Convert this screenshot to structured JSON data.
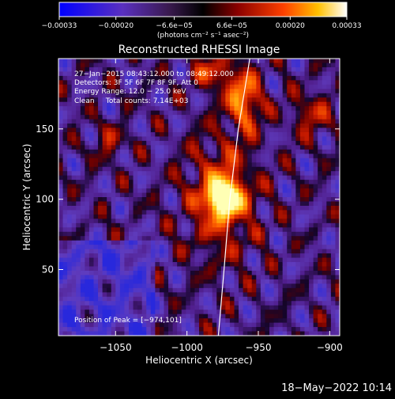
{
  "colorbar": {
    "tick_labels": [
      "−0.00033",
      "−0.00020",
      "−6.6e−05",
      "6.6e−05",
      "0.00020",
      "0.00033"
    ],
    "tick_values": [
      -0.00033,
      -0.0002,
      -6.6e-05,
      6.6e-05,
      0.0002,
      0.00033
    ],
    "range": [
      -0.00033,
      0.00033
    ],
    "units_label": "(photons cm⁻² s⁻¹ asec⁻²)"
  },
  "chart_data": {
    "type": "heatmap",
    "title": "Reconstructed RHESSI Image",
    "xlabel": "Heliocentric X (arcsec)",
    "ylabel": "Heliocentric Y (arcsec)",
    "xlim": [
      -1090,
      -893
    ],
    "ylim": [
      3,
      200
    ],
    "x_ticks": [
      -1050,
      -1000,
      -950,
      -900
    ],
    "x_tick_labels": [
      "−1050",
      "−1000",
      "−950",
      "−900"
    ],
    "y_ticks": [
      50,
      100,
      150
    ],
    "y_tick_labels": [
      "50",
      "100",
      "150"
    ],
    "peak": [
      -974,
      101
    ],
    "limb_points": [
      [
        -978,
        3
      ],
      [
        -974,
        50
      ],
      [
        -970,
        100
      ],
      [
        -964,
        150
      ],
      [
        -956,
        200
      ]
    ],
    "grid": false,
    "annotations": [
      "27−Jan−2015 08:43:12.000 to 08:49:12.000",
      "Detectors: 3F 5F 6F 7F 8F 9F, Att 0",
      "Energy Range: 12.0 − 25.0 keV",
      "Clean     Total counts: 7.14E+03",
      "Position of Peak = [−974,101]"
    ]
  },
  "footer": {
    "timestamp": "18−May−2022 10:14"
  },
  "colors": {
    "background": "#000000",
    "colormap": [
      "#0000ff",
      "#3a1fb8",
      "#6a3aa8",
      "#4a2a70",
      "#1a0a20",
      "#000000",
      "#7a0000",
      "#c01a00",
      "#ff5000",
      "#ffb000",
      "#ffff90",
      "#ffffff"
    ]
  }
}
